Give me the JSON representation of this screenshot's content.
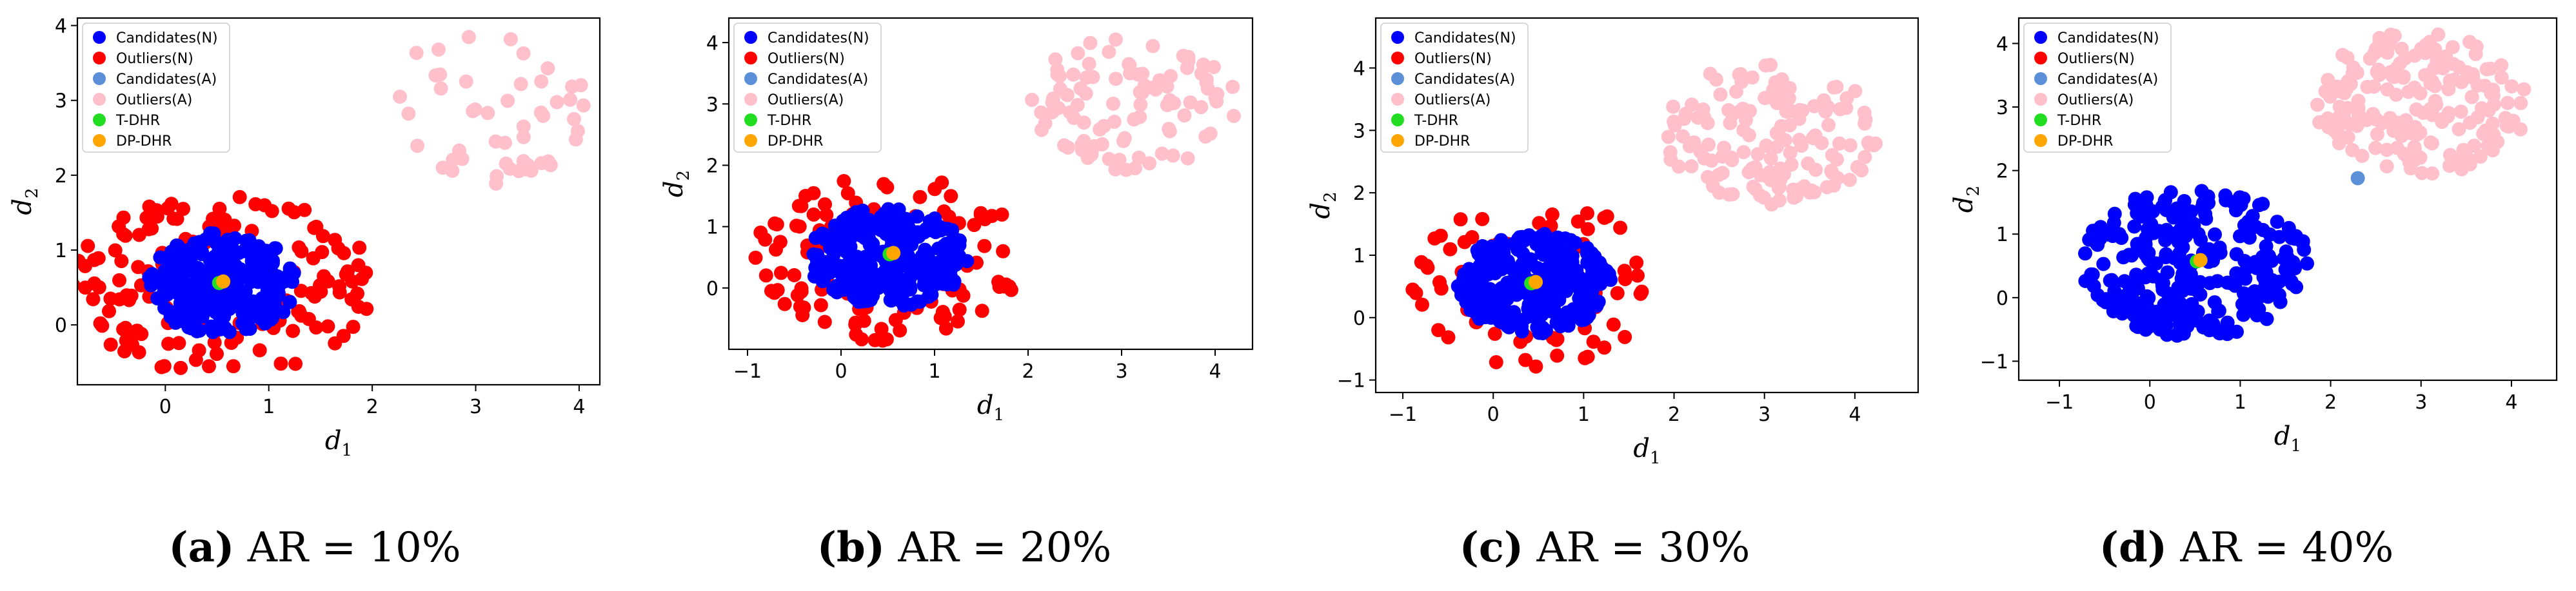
{
  "legend_labels": [
    "Candidates(N)",
    "Outliers(N)",
    "Candidates(A)",
    "Outliers(A)",
    "T-DHR",
    "DP-DHR"
  ],
  "colors": {
    "candidates_n": "#0000ff",
    "outliers_n": "#ff0000",
    "candidates_a": "#5b8fd8",
    "outliers_a": "#ffc0cb",
    "t_dhr": "#22dd22",
    "dp_dhr": "#ffa500"
  },
  "chart_data": [
    {
      "type": "scatter",
      "panel": "a",
      "caption": {
        "letter": "(a)",
        "text": "AR = 10%"
      },
      "xlabel": "d",
      "xlabel_sub": "1",
      "ylabel": "d",
      "ylabel_sub": "2",
      "xlim": [
        -0.85,
        4.2
      ],
      "ylim": [
        -0.8,
        4.1
      ],
      "xticks": [
        0,
        1,
        2,
        3,
        4
      ],
      "yticks": [
        0,
        1,
        2,
        3,
        4
      ],
      "legend": "upper-left",
      "clusters": [
        {
          "series": "Outliers(N)",
          "center": [
            0.55,
            0.55
          ],
          "rmin": 0.55,
          "rmax": 1.45,
          "sx": 1.0,
          "sy": 0.85,
          "n": 150
        },
        {
          "series": "Candidates(N)",
          "center": [
            0.55,
            0.55
          ],
          "rmin": 0.0,
          "rmax": 0.72,
          "sx": 1.0,
          "sy": 0.95,
          "n": 260
        },
        {
          "series": "Outliers(A)",
          "center": [
            3.05,
            2.9
          ],
          "rmin": 0.0,
          "rmax": 1.05,
          "sx": 1.0,
          "sy": 1.0,
          "n": 50
        }
      ],
      "extra_points": [],
      "t_dhr": [
        0.52,
        0.56
      ],
      "dp_dhr": [
        0.56,
        0.58
      ]
    },
    {
      "type": "scatter",
      "panel": "b",
      "caption": {
        "letter": "(b)",
        "text": "AR = 20%"
      },
      "xlabel": "d",
      "xlabel_sub": "1",
      "ylabel": "d",
      "ylabel_sub": "2",
      "xlim": [
        -1.2,
        4.4
      ],
      "ylim": [
        -1.0,
        4.4
      ],
      "xticks": [
        -1,
        0,
        1,
        2,
        3,
        4
      ],
      "yticks": [
        0,
        1,
        2,
        3,
        4
      ],
      "legend": "upper-left",
      "clusters": [
        {
          "series": "Outliers(N)",
          "center": [
            0.5,
            0.5
          ],
          "rmin": 0.6,
          "rmax": 1.45,
          "sx": 1.0,
          "sy": 0.95,
          "n": 110
        },
        {
          "series": "Candidates(N)",
          "center": [
            0.5,
            0.5
          ],
          "rmin": 0.0,
          "rmax": 0.85,
          "sx": 1.0,
          "sy": 0.95,
          "n": 280
        },
        {
          "series": "Outliers(A)",
          "center": [
            3.1,
            3.0
          ],
          "rmin": 0.0,
          "rmax": 1.15,
          "sx": 1.0,
          "sy": 0.95,
          "n": 100
        }
      ],
      "extra_points": [],
      "t_dhr": [
        0.52,
        0.55
      ],
      "dp_dhr": [
        0.56,
        0.57
      ]
    },
    {
      "type": "scatter",
      "panel": "c",
      "caption": {
        "letter": "(c)",
        "text": "AR = 30%"
      },
      "xlabel": "d",
      "xlabel_sub": "1",
      "ylabel": "d",
      "ylabel_sub": "2",
      "xlim": [
        -1.3,
        4.7
      ],
      "ylim": [
        -1.2,
        4.8
      ],
      "xticks": [
        -1,
        0,
        1,
        2,
        3,
        4
      ],
      "yticks": [
        -1,
        0,
        1,
        2,
        3,
        4
      ],
      "legend": "upper-left",
      "clusters": [
        {
          "series": "Outliers(N)",
          "center": [
            0.45,
            0.55
          ],
          "rmin": 0.62,
          "rmax": 1.35,
          "sx": 1.0,
          "sy": 1.0,
          "n": 70
        },
        {
          "series": "Candidates(N)",
          "center": [
            0.45,
            0.55
          ],
          "rmin": 0.0,
          "rmax": 0.85,
          "sx": 1.0,
          "sy": 0.95,
          "n": 270
        },
        {
          "series": "Outliers(A)",
          "center": [
            3.05,
            2.95
          ],
          "rmin": 0.0,
          "rmax": 1.2,
          "sx": 1.0,
          "sy": 0.95,
          "n": 150
        }
      ],
      "extra_points": [],
      "t_dhr": [
        0.42,
        0.55
      ],
      "dp_dhr": [
        0.47,
        0.57
      ]
    },
    {
      "type": "scatter",
      "panel": "d",
      "caption": {
        "letter": "(d)",
        "text": "AR = 40%"
      },
      "xlabel": "d",
      "xlabel_sub": "1",
      "ylabel": "d",
      "ylabel_sub": "2",
      "xlim": [
        -1.45,
        4.5
      ],
      "ylim": [
        -1.3,
        4.4
      ],
      "xticks": [
        -1,
        0,
        1,
        2,
        3,
        4
      ],
      "yticks": [
        -1,
        0,
        1,
        2,
        3,
        4
      ],
      "legend": "upper-left",
      "clusters": [
        {
          "series": "Candidates(N)",
          "center": [
            0.5,
            0.55
          ],
          "rmin": 0.0,
          "rmax": 1.25,
          "sx": 1.0,
          "sy": 0.95,
          "n": 300
        },
        {
          "series": "Outliers(A)",
          "center": [
            3.0,
            3.05
          ],
          "rmin": 0.0,
          "rmax": 1.2,
          "sx": 1.0,
          "sy": 0.95,
          "n": 200
        }
      ],
      "extra_points": [
        {
          "series": "Candidates(A)",
          "x": 2.3,
          "y": 1.88
        }
      ],
      "t_dhr": [
        0.52,
        0.57
      ],
      "dp_dhr": [
        0.56,
        0.59
      ]
    }
  ]
}
